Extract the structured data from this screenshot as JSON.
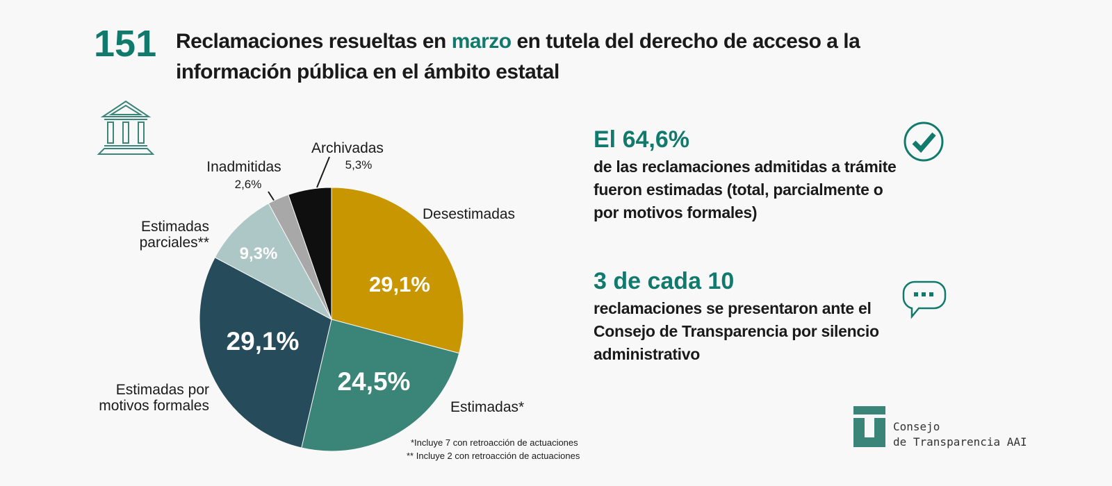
{
  "headline": {
    "number": "151",
    "text_before": "Reclamaciones resueltas en",
    "highlight": "marzo",
    "text_after": "en tutela del derecho de acceso a la información pública en el ámbito estatal"
  },
  "chart_data": {
    "type": "pie",
    "categories": [
      "Desestimadas",
      "Estimadas*",
      "Estimadas por motivos formales",
      "Estimadas parciales**",
      "Inadmitidas",
      "Archivadas"
    ],
    "values": [
      29.1,
      24.5,
      29.1,
      9.3,
      2.6,
      5.3
    ],
    "value_labels": [
      "29,1%",
      "24,5%",
      "29,1%",
      "9,3%",
      "2,6%",
      "5,3%"
    ],
    "colors": [
      "#c89600",
      "#3a8478",
      "#264b5a",
      "#adc7c6",
      "#a8a8a8",
      "#0f0f0f"
    ],
    "footnotes": [
      "*Incluye 7 con retroacción de actuaciones",
      "** Incluye 2 con retroacción de actuaciones"
    ]
  },
  "stats": [
    {
      "headline": "El 64,6%",
      "text": "de las reclamaciones admitidas a trámite fueron estimadas (total, parcialmente o por motivos formales)"
    },
    {
      "headline": "3 de cada 10",
      "text": "reclamaciones se presentaron ante el Consejo de Transparencia por silencio administrativo"
    }
  ],
  "logo": {
    "line1": "Consejo",
    "line2": "de Transparencia AAI"
  }
}
